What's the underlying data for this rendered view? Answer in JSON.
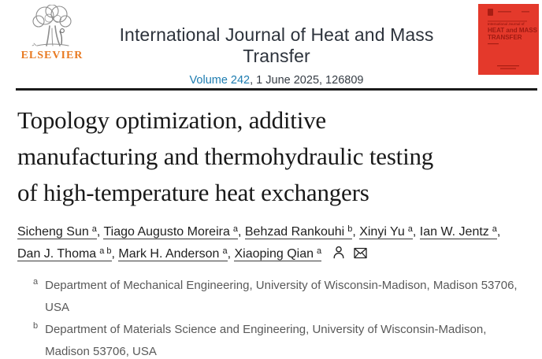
{
  "header": {
    "publisher": "ELSEVIER",
    "journal_title": "International Journal of Heat and Mass Transfer",
    "volume_link": "Volume 242",
    "issue_info": ", 1 June 2025, 126809"
  },
  "cover": {
    "line1": "International Journal of",
    "line2": "HEAT and MASS",
    "line3": "TRANSFER",
    "bg_color": "#e4392b",
    "text_color": "#9e1a12"
  },
  "article": {
    "title_lines": [
      "Topology optimization, additive",
      "manufacturing and thermohydraulic testing",
      "of high-temperature heat exchangers"
    ],
    "full_title": "Topology optimization, additive manufacturing and thermohydraulic testing of high-temperature heat exchangers"
  },
  "authors": [
    {
      "name": "Sicheng Sun",
      "sup": "a"
    },
    {
      "name": "Tiago Augusto Moreira",
      "sup": "a"
    },
    {
      "name": "Behzad Rankouhi",
      "sup": "b"
    },
    {
      "name": "Xinyi Yu",
      "sup": "a"
    },
    {
      "name": "Ian W. Jentz",
      "sup": "a"
    },
    {
      "name": "Dan J. Thoma",
      "sup": "a b"
    },
    {
      "name": "Mark H. Anderson",
      "sup": "a"
    },
    {
      "name": "Xiaoping Qian",
      "sup": "a"
    }
  ],
  "author_icons": [
    "person-icon",
    "envelope-icon"
  ],
  "affiliations": [
    {
      "sup": "a",
      "text": "Department of Mechanical Engineering, University of Wisconsin-Madison, Madison 53706, USA"
    },
    {
      "sup": "b",
      "text": "Department of Materials Science and Engineering, University of Wisconsin-Madison, Madison 53706, USA"
    }
  ],
  "colors": {
    "link_blue": "#1d7cb0",
    "elsevier_orange": "#e87a22",
    "cover_red": "#e4392b",
    "cover_text_red": "#9e1a12",
    "journal_title_dark": "#2d333c",
    "body_text": "#1f1f1f",
    "affiliation_gray": "#595959"
  }
}
